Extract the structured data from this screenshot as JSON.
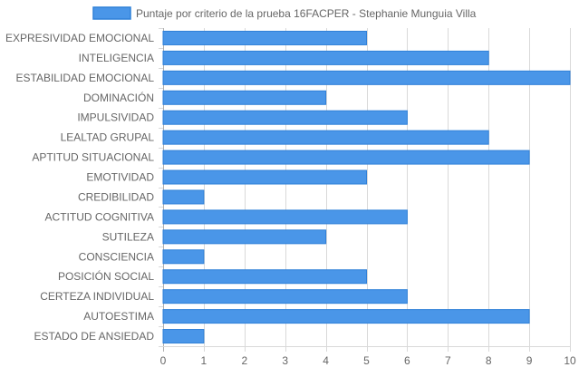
{
  "chart_data": {
    "type": "bar",
    "orientation": "horizontal",
    "categories": [
      "EXPRESIVIDAD EMOCIONAL",
      "INTELIGENCIA",
      "ESTABILIDAD EMOCIONAL",
      "DOMINACIÓN",
      "IMPULSIVIDAD",
      "LEALTAD GRUPAL",
      "APTITUD SITUACIONAL",
      "EMOTIVIDAD",
      "CREDIBILIDAD",
      "ACTITUD COGNITIVA",
      "SUTILEZA",
      "CONSCIENCIA",
      "POSICIÓN SOCIAL",
      "CERTEZA INDIVIDUAL",
      "AUTOESTIMA",
      "ESTADO DE ANSIEDAD"
    ],
    "series": [
      {
        "name": "Puntaje por criterio de la prueba 16FACPER - Stephanie Munguia Villa",
        "values": [
          5,
          8,
          10,
          4,
          6,
          8,
          9,
          5,
          1,
          6,
          4,
          1,
          5,
          6,
          9,
          1
        ],
        "color": "#4a96e8",
        "border_color": "#2f80d8"
      }
    ],
    "xlim": [
      0,
      10
    ],
    "xticks": [
      "0",
      "1",
      "2",
      "3",
      "4",
      "5",
      "6",
      "7",
      "8",
      "9",
      "10"
    ],
    "grid": true,
    "legend_position": "top"
  }
}
